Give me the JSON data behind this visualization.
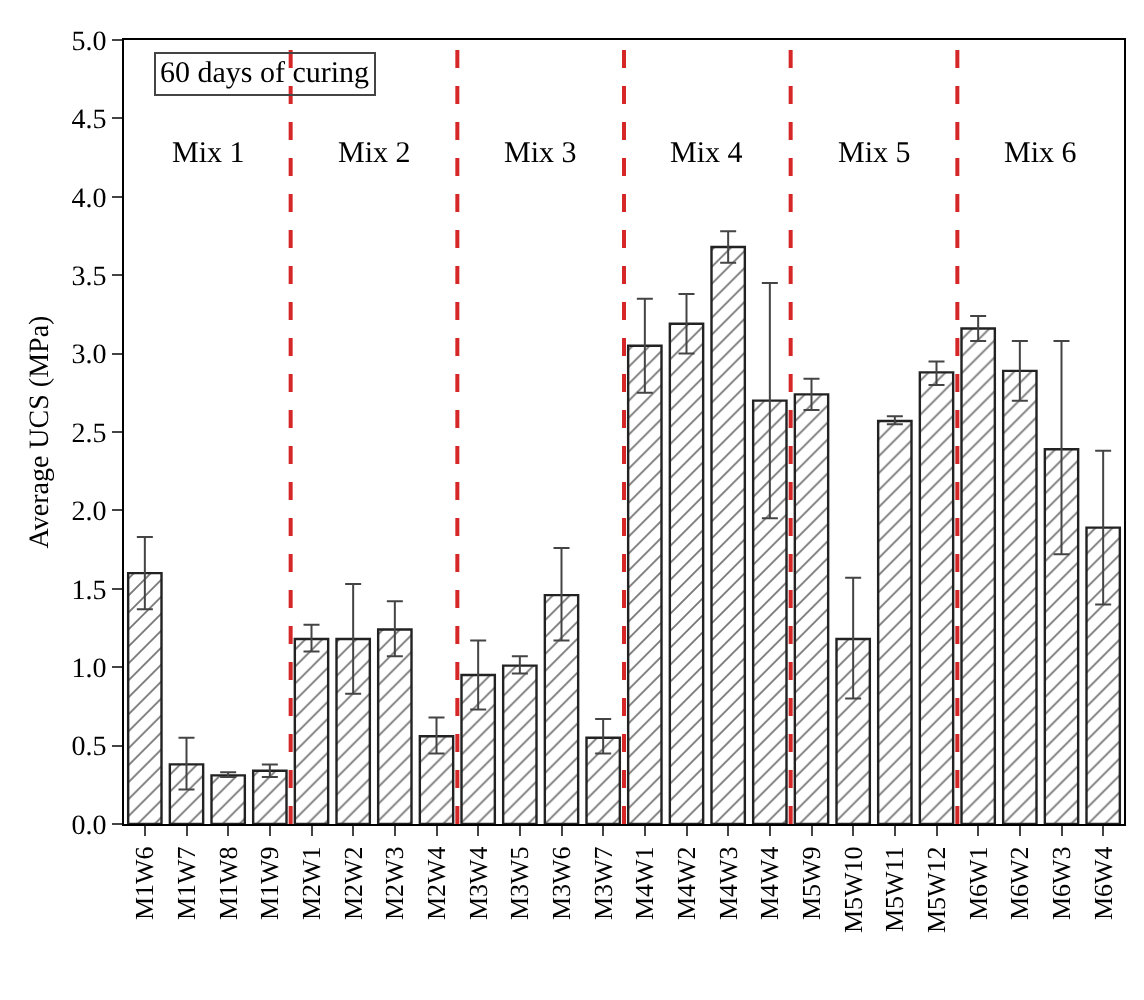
{
  "chart_data": {
    "type": "bar",
    "ylabel": "Average UCS (MPa)",
    "categories": [
      "M1W6",
      "M1W7",
      "M1W8",
      "M1W9",
      "M2W1",
      "M2W2",
      "M2W3",
      "M2W4",
      "M3W4",
      "M3W5",
      "M3W6",
      "M3W7",
      "M4W1",
      "M4W2",
      "M4W3",
      "M4W4",
      "M5W9",
      "M5W10",
      "M5W11",
      "M5W12",
      "M6W1",
      "M6W2",
      "M6W3",
      "M6W4"
    ],
    "values": [
      1.6,
      0.38,
      0.31,
      0.34,
      1.18,
      1.18,
      1.24,
      0.56,
      0.95,
      1.01,
      1.46,
      0.55,
      3.05,
      3.19,
      3.68,
      2.7,
      2.74,
      1.18,
      2.57,
      2.88,
      3.16,
      2.89,
      2.39,
      1.89
    ],
    "errors": [
      [
        1.37,
        1.83
      ],
      [
        0.22,
        0.55
      ],
      [
        0.3,
        0.33
      ],
      [
        0.3,
        0.38
      ],
      [
        1.1,
        1.27
      ],
      [
        0.83,
        1.53
      ],
      [
        1.07,
        1.42
      ],
      [
        0.45,
        0.68
      ],
      [
        0.73,
        1.17
      ],
      [
        0.96,
        1.07
      ],
      [
        1.17,
        1.76
      ],
      [
        0.45,
        0.67
      ],
      [
        2.75,
        3.35
      ],
      [
        3.0,
        3.38
      ],
      [
        3.58,
        3.78
      ],
      [
        1.95,
        3.45
      ],
      [
        2.64,
        2.84
      ],
      [
        0.8,
        1.57
      ],
      [
        2.55,
        2.6
      ],
      [
        2.8,
        2.95
      ],
      [
        3.08,
        3.24
      ],
      [
        2.7,
        3.08
      ],
      [
        1.72,
        3.08
      ],
      [
        1.4,
        2.38
      ]
    ],
    "color": "#222222",
    "ylim": [
      0,
      5
    ],
    "yticks": [
      {
        "value": 0,
        "label": "0.0"
      },
      {
        "value": 0.5,
        "label": "0.5"
      },
      {
        "value": 1,
        "label": "1.0"
      },
      {
        "value": 1.5,
        "label": "1.5"
      },
      {
        "value": 2,
        "label": "2.0"
      },
      {
        "value": 2.5,
        "label": "2.5"
      },
      {
        "value": 3,
        "label": "3.0"
      },
      {
        "value": 3.5,
        "label": "3.5"
      },
      {
        "value": 4,
        "label": "4.0"
      },
      {
        "value": 4.5,
        "label": "4.5"
      },
      {
        "value": 5,
        "label": "5.0"
      }
    ],
    "annotations": [
      "60 days of curing",
      "Mix 1",
      "Mix 2",
      "Mix 3",
      "Mix 4",
      "Mix 5",
      "Mix 6"
    ],
    "grid": false,
    "legend": false
  }
}
